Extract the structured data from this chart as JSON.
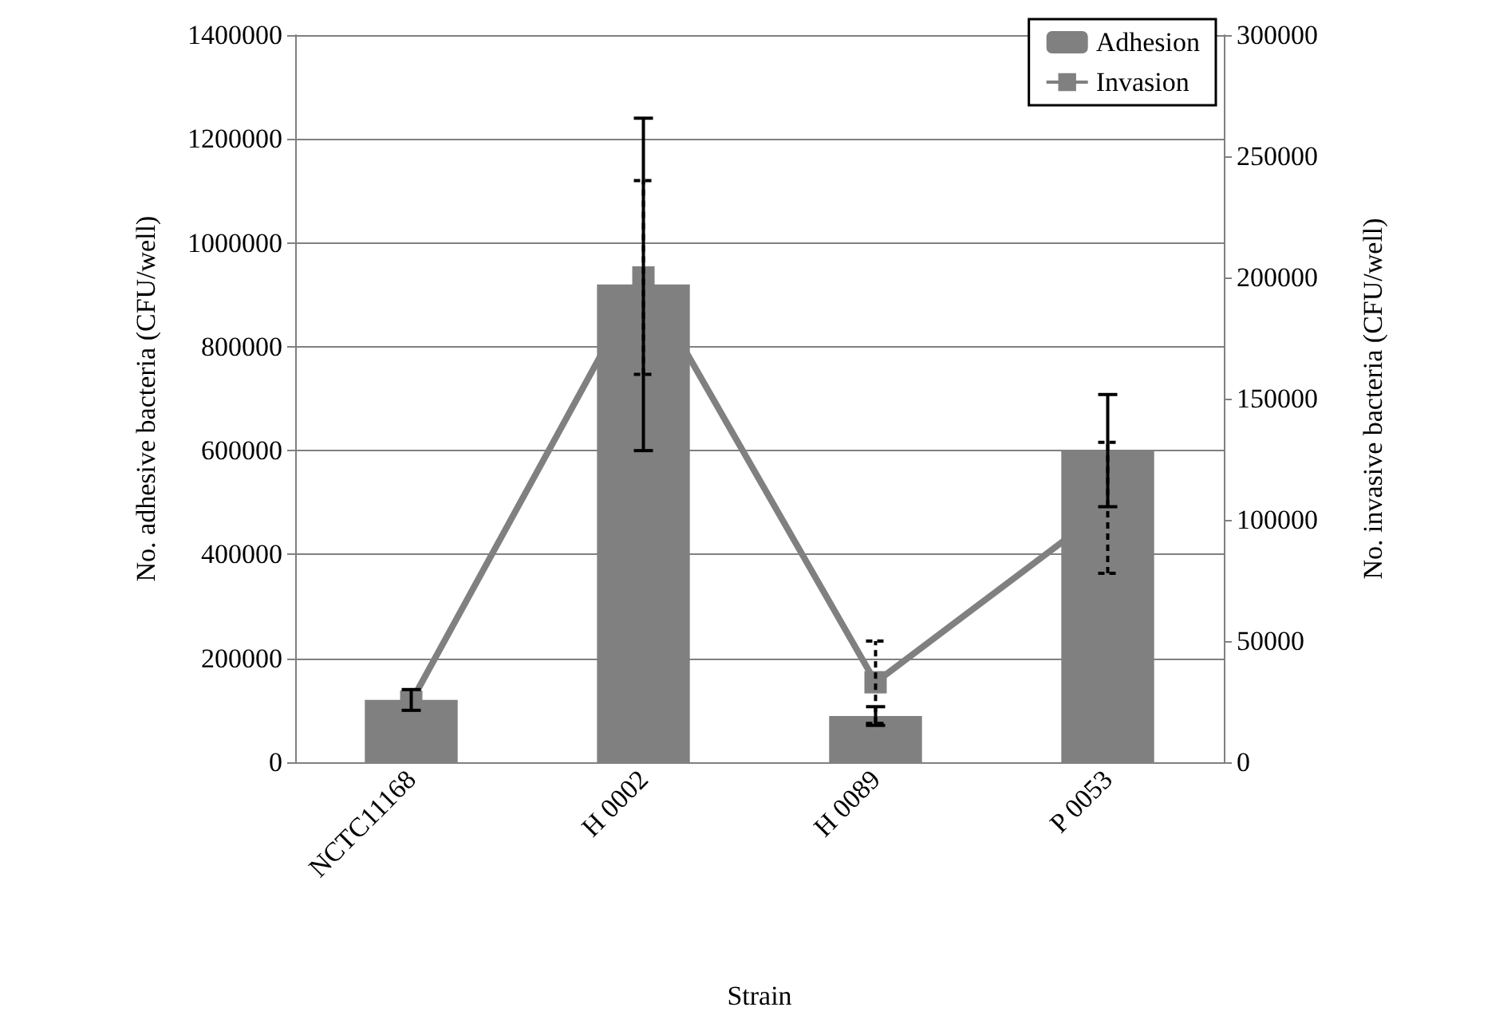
{
  "chart_data": {
    "type": "bar",
    "xlabel": "Strain",
    "ylabel": "No. adhesive bacteria (CFU/well)",
    "y2label": "No. invasive bacteria (CFU/well)",
    "categories": [
      "NCTC11168",
      "H 0002",
      "H 0089",
      "P 0053"
    ],
    "series": [
      {
        "name": "Adhesion",
        "color": "#808080",
        "values": [
          120000,
          920000,
          89000,
          600000
        ],
        "errors": [
          20000,
          320000,
          18000,
          108000
        ]
      },
      {
        "name": "Invasion",
        "type": "line",
        "axis": "y2",
        "color": "#808080",
        "marker": "square",
        "values": [
          25000,
          200000,
          33000,
          105000
        ],
        "errors": [
          null,
          40000,
          17000,
          27000
        ]
      }
    ],
    "ylim": [
      0,
      1400000
    ],
    "yticks": [
      0,
      200000,
      400000,
      600000,
      800000,
      1000000,
      1200000,
      1400000
    ],
    "y2lim": [
      0,
      300000
    ],
    "y2ticks": [
      0,
      50000,
      100000,
      150000,
      200000,
      250000,
      300000
    ],
    "grid": "y",
    "legend": "top right"
  }
}
